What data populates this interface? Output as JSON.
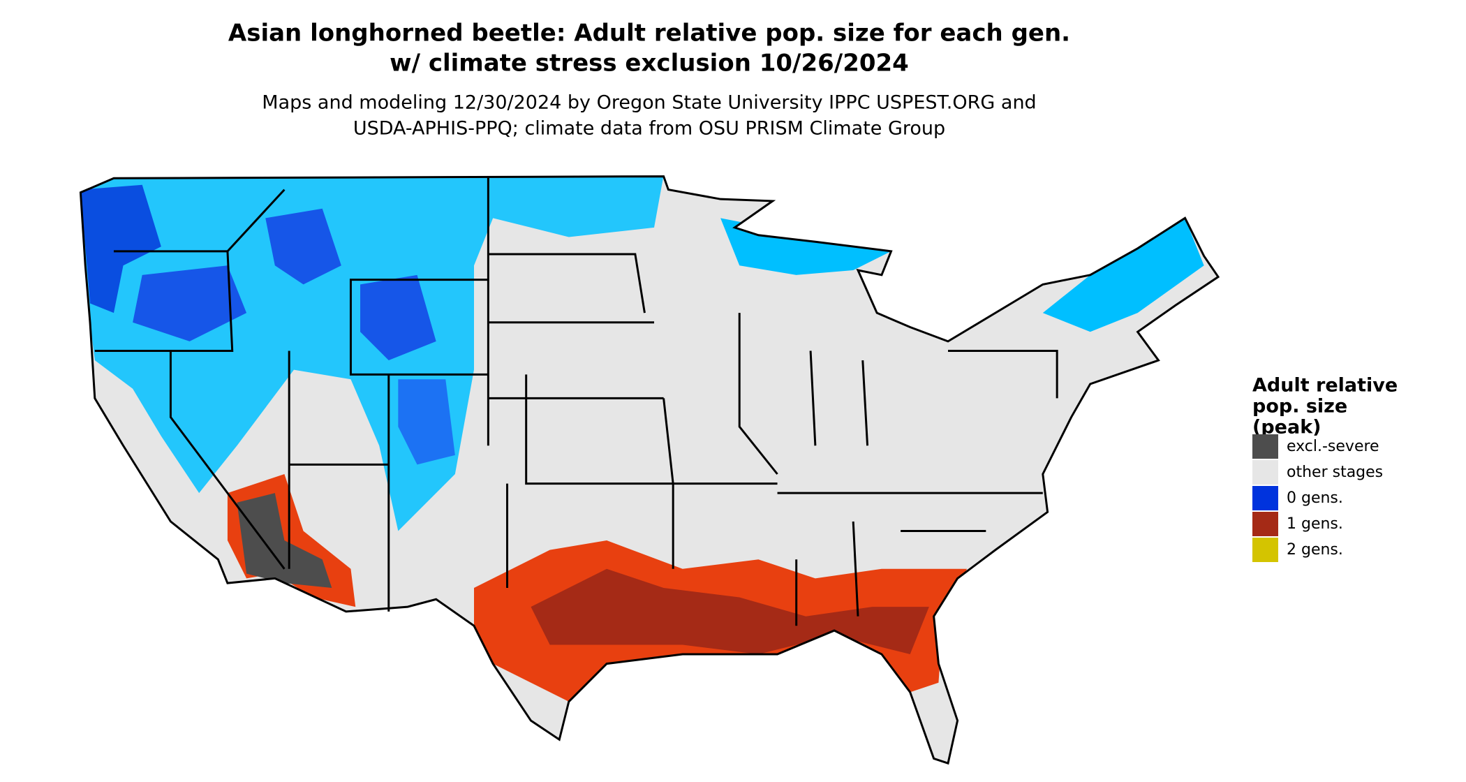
{
  "title": [
    "Asian longhorned beetle: Adult relative pop. size for each gen.",
    "w/ climate stress exclusion 10/26/2024"
  ],
  "subtitle": [
    "Maps and modeling 12/30/2024 by Oregon State University IPPC USPEST.ORG and",
    "USDA-APHIS-PPQ; climate data from OSU PRISM Climate Group"
  ],
  "legend": {
    "title": [
      "Adult relative",
      "pop. size",
      "(peak)"
    ],
    "items": [
      {
        "label": "excl.-severe",
        "color": "#4d4d4d"
      },
      {
        "label": "other stages",
        "color": "#e6e6e6"
      },
      {
        "label": "0 gens.",
        "color": "#0033dd"
      },
      {
        "label": "1 gens.",
        "color": "#a52a16"
      },
      {
        "label": "2 gens.",
        "color": "#d4c400"
      }
    ]
  }
}
